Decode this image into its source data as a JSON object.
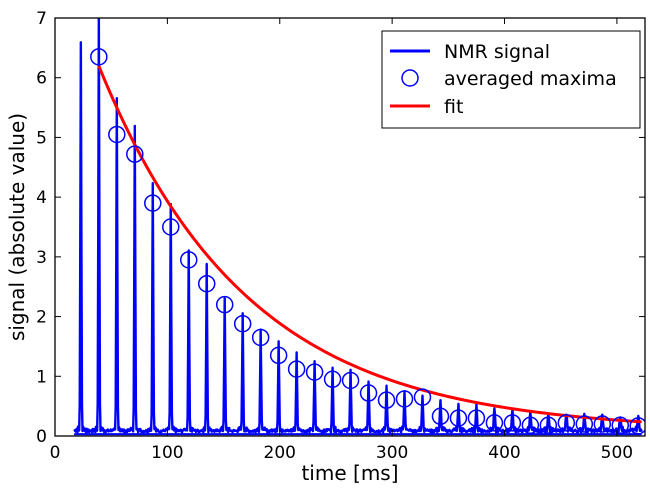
{
  "chart_data": {
    "type": "line",
    "title": "",
    "xlabel": "time [ms]",
    "ylabel": "signal (absolute value)",
    "xlim": [
      0,
      525
    ],
    "ylim": [
      0,
      7
    ],
    "grid": false,
    "legend_position": "top-right",
    "x_ticks": [
      0,
      100,
      200,
      300,
      400,
      500
    ],
    "y_ticks": [
      0,
      1,
      2,
      3,
      4,
      5,
      6,
      7
    ],
    "series": [
      {
        "name": "NMR signal",
        "color": "#0000ff",
        "style": "line",
        "peaks": {
          "x": [
            23,
            39,
            55,
            71,
            87,
            103,
            119,
            135,
            151,
            167,
            183,
            199,
            215,
            231,
            247,
            263,
            279,
            295,
            311,
            327,
            343,
            359,
            375,
            391,
            407,
            423,
            439,
            455,
            471,
            487,
            503,
            519
          ],
          "y": [
            6.5,
            7.0,
            5.55,
            5.1,
            4.15,
            3.8,
            3.0,
            2.8,
            2.2,
            1.95,
            1.7,
            1.5,
            1.3,
            1.15,
            1.05,
            1.0,
            0.85,
            0.75,
            0.65,
            0.6,
            0.5,
            0.45,
            0.42,
            0.38,
            0.35,
            0.32,
            0.3,
            0.28,
            0.27,
            0.26,
            0.25,
            0.24
          ]
        },
        "baseline_range": [
          17,
          522
        ]
      },
      {
        "name": "averaged maxima",
        "color": "#0000ff",
        "style": "open-circle",
        "x": [
          39,
          55,
          71,
          87,
          103,
          119,
          135,
          151,
          167,
          183,
          199,
          215,
          231,
          247,
          263,
          279,
          295,
          311,
          327,
          343,
          359,
          375,
          391,
          407,
          423,
          439,
          455,
          471,
          487,
          503,
          519
        ],
        "y": [
          6.35,
          5.05,
          4.72,
          3.9,
          3.5,
          2.95,
          2.55,
          2.2,
          1.88,
          1.65,
          1.35,
          1.12,
          1.07,
          0.95,
          0.93,
          0.72,
          0.6,
          0.62,
          0.65,
          0.33,
          0.3,
          0.3,
          0.22,
          0.22,
          0.18,
          0.18,
          0.22,
          0.2,
          0.2,
          0.18,
          0.17
        ]
      },
      {
        "name": "fit",
        "color": "#ff0000",
        "style": "line",
        "model": "exponential-decay",
        "params": {
          "A": 8.22,
          "tau": 132.0,
          "t0": 0,
          "c": 0.08
        },
        "x_range": [
          39,
          522
        ]
      }
    ]
  }
}
